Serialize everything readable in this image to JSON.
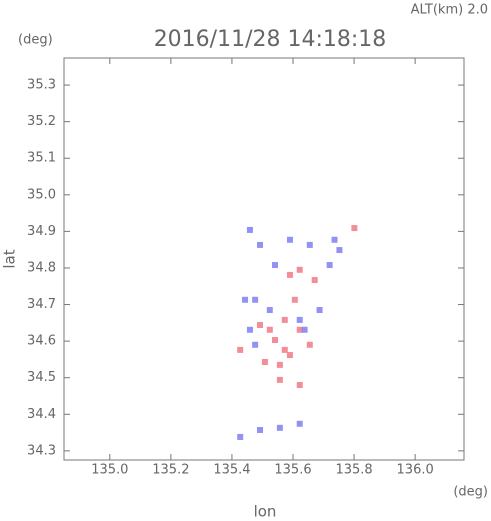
{
  "chart_data": {
    "type": "scatter",
    "title": "2016/11/28 14:18:18",
    "subtitle": "ALT(km) 2.0",
    "y_unit": "(deg)",
    "x_unit": "(deg)",
    "xlabel": "lon",
    "ylabel": "lat",
    "xlim": [
      134.85,
      136.16
    ],
    "ylim": [
      34.275,
      35.374
    ],
    "xticks": [
      {
        "value": 135.0,
        "label": "135.0"
      },
      135.2,
      135.4,
      135.6,
      135.8,
      {
        "value": 136.0,
        "label": "136.0"
      }
    ],
    "yticks": [
      34.3,
      34.4,
      34.5,
      34.6,
      34.7,
      34.8,
      34.9,
      {
        "value": 35.0,
        "label": "35.0"
      },
      35.1,
      35.2,
      35.3
    ],
    "series": [
      {
        "color": "#f07a86",
        "x": [
          135.801,
          135.622,
          135.59,
          135.524,
          135.541,
          135.573,
          135.557,
          135.622,
          135.427,
          135.492,
          135.606,
          135.655,
          135.59,
          135.557,
          135.508,
          135.573,
          135.622,
          135.671
        ],
        "values": [
          34.909,
          34.795,
          34.781,
          34.631,
          34.603,
          34.576,
          34.494,
          34.48,
          34.576,
          34.644,
          34.713,
          34.59,
          34.562,
          34.535,
          34.543,
          34.658,
          34.631,
          34.767
        ]
      },
      {
        "color": "#7f7ff2",
        "x": [
          135.492,
          135.655,
          135.72,
          135.476,
          135.524,
          135.622,
          135.687,
          135.459,
          135.476,
          135.638,
          135.736,
          135.752,
          135.443,
          135.541,
          135.492,
          135.557,
          135.622,
          135.427,
          135.59,
          135.459
        ],
        "values": [
          34.863,
          34.863,
          34.808,
          34.713,
          34.685,
          34.658,
          34.685,
          34.631,
          34.59,
          34.631,
          34.877,
          34.849,
          34.713,
          34.808,
          34.357,
          34.363,
          34.374,
          34.338,
          34.877,
          34.904
        ]
      }
    ]
  }
}
